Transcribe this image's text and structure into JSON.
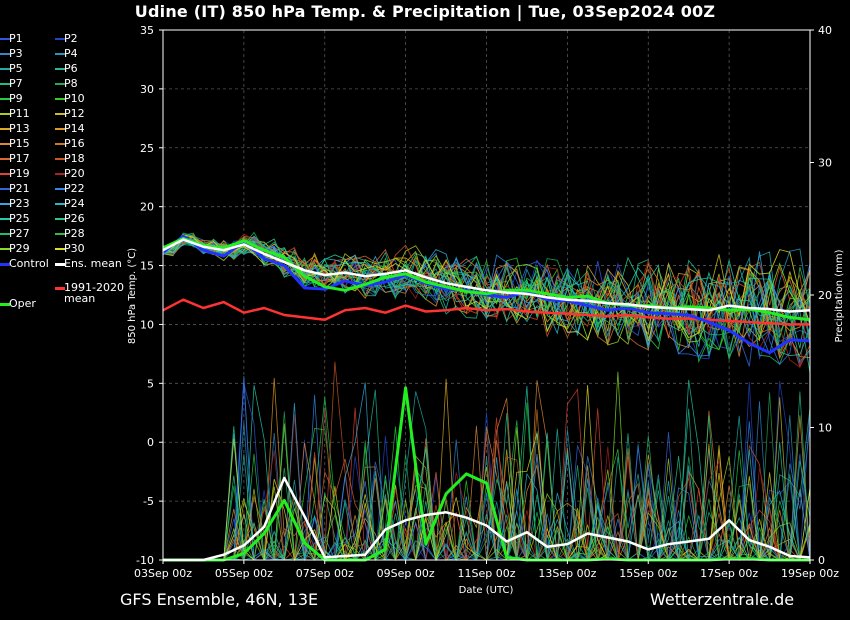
{
  "title": "Udine  (IT)  850 hPa Temp. & Precipitation | Tue, 03Sep2024 00Z",
  "footer_left": "GFS Ensemble, 46N, 13E",
  "footer_right": "Wetterzentrale.de",
  "colors": {
    "background": "#000000",
    "grid": "#555555",
    "oper": "#22ee22",
    "control": "#2233ff",
    "ens_mean": "#ffffff",
    "climate_mean": "#ff3333"
  },
  "legend": {
    "members": [
      {
        "label": "P1",
        "color": "#3355dd"
      },
      {
        "label": "P2",
        "color": "#2244cc"
      },
      {
        "label": "P3",
        "color": "#3388cc"
      },
      {
        "label": "P4",
        "color": "#2299bb"
      },
      {
        "label": "P5",
        "color": "#22aaaa"
      },
      {
        "label": "P6",
        "color": "#22bb99"
      },
      {
        "label": "P7",
        "color": "#22bb88"
      },
      {
        "label": "P8",
        "color": "#22aa55"
      },
      {
        "label": "P9",
        "color": "#22cc44"
      },
      {
        "label": "P10",
        "color": "#33cc22"
      },
      {
        "label": "P11",
        "color": "#aacc22"
      },
      {
        "label": "P12",
        "color": "#ccbb22"
      },
      {
        "label": "P13",
        "color": "#ddaa22"
      },
      {
        "label": "P14",
        "color": "#dd9922"
      },
      {
        "label": "P15",
        "color": "#dd8833"
      },
      {
        "label": "P16",
        "color": "#cc7722"
      },
      {
        "label": "P17",
        "color": "#dd6633"
      },
      {
        "label": "P18",
        "color": "#cc5522"
      },
      {
        "label": "P19",
        "color": "#dd4433"
      },
      {
        "label": "P20",
        "color": "#aa2222"
      },
      {
        "label": "P21",
        "color": "#3366dd"
      },
      {
        "label": "P22",
        "color": "#3388ee"
      },
      {
        "label": "P23",
        "color": "#33aadd"
      },
      {
        "label": "P24",
        "color": "#22bbcc"
      },
      {
        "label": "P25",
        "color": "#22ccaa"
      },
      {
        "label": "P26",
        "color": "#22cc88"
      },
      {
        "label": "P27",
        "color": "#22bb66"
      },
      {
        "label": "P28",
        "color": "#33bb44"
      },
      {
        "label": "P29",
        "color": "#88dd22"
      },
      {
        "label": "P30",
        "color": "#dddd22"
      }
    ],
    "control": "Control",
    "ens_mean": "Ens. mean",
    "oper": "Oper",
    "climate_line1": "1991-2020",
    "climate_line2": "mean"
  },
  "chart_data": {
    "type": "line",
    "xlabel": "Date (UTC)",
    "ylabel": "850 hPa Temp. (°C)",
    "ylabel_right": "Precipitation (mm)",
    "x_ticks": [
      "03Sep 00z",
      "05Sep 00z",
      "07Sep 00z",
      "09Sep 00z",
      "11Sep 00z",
      "13Sep 00z",
      "15Sep 00z",
      "17Sep 00z",
      "19Sep 00z"
    ],
    "x_tick_days": [
      0,
      2,
      4,
      6,
      8,
      10,
      12,
      14,
      16
    ],
    "ylim": [
      -10,
      35
    ],
    "y_ticks": [
      -10,
      -5,
      0,
      5,
      10,
      15,
      20,
      25,
      30,
      35
    ],
    "ylim_right": [
      0,
      40
    ],
    "y_ticks_right": [
      0,
      10,
      20,
      30,
      40
    ],
    "grid": true,
    "series": [
      {
        "name": "Ens. mean",
        "kind": "temperature",
        "days": [
          0,
          0.5,
          1,
          1.5,
          2,
          2.5,
          3,
          3.5,
          4,
          4.5,
          5,
          5.5,
          6,
          6.5,
          7,
          7.5,
          8,
          8.5,
          9,
          9.5,
          10,
          10.5,
          11,
          11.5,
          12,
          12.5,
          13,
          13.5,
          14,
          14.5,
          15,
          15.5,
          16
        ],
        "values": [
          16.3,
          17.2,
          16.6,
          16.3,
          16.8,
          16.0,
          15.3,
          14.6,
          14.2,
          14.4,
          14.1,
          14.3,
          14.6,
          14.0,
          13.5,
          13.2,
          12.9,
          12.7,
          12.6,
          12.3,
          12.1,
          12.0,
          11.8,
          11.7,
          11.5,
          11.4,
          11.3,
          11.2,
          11.6,
          11.4,
          11.3,
          11.1,
          11.2
        ]
      },
      {
        "name": "Control",
        "kind": "temperature",
        "days": [
          0,
          0.5,
          1,
          1.5,
          2,
          2.5,
          3,
          3.5,
          4,
          4.5,
          5,
          5.5,
          6,
          6.5,
          7,
          7.5,
          8,
          8.5,
          9,
          9.5,
          10,
          10.5,
          11,
          11.5,
          12,
          12.5,
          13,
          13.5,
          14,
          14.5,
          15,
          15.5,
          16
        ],
        "values": [
          16.1,
          17.5,
          16.3,
          15.8,
          17.0,
          15.6,
          15.0,
          13.1,
          13.0,
          13.7,
          13.3,
          13.6,
          14.2,
          13.5,
          13.0,
          12.9,
          12.5,
          12.3,
          12.8,
          12.1,
          12.0,
          11.6,
          11.2,
          11.4,
          11.0,
          10.9,
          10.8,
          10.2,
          9.5,
          8.4,
          7.6,
          8.7,
          8.6
        ]
      },
      {
        "name": "Oper",
        "kind": "temperature",
        "days": [
          0,
          0.5,
          1,
          1.5,
          2,
          2.5,
          3,
          3.5,
          4,
          4.5,
          5,
          5.5,
          6,
          6.5,
          7,
          7.5,
          8,
          8.5,
          9,
          9.5,
          10,
          10.5,
          11,
          11.5,
          12,
          12.5,
          13,
          13.5,
          14,
          14.5,
          15,
          15.5,
          16
        ],
        "values": [
          16.5,
          17.3,
          16.7,
          16.5,
          17.1,
          16.3,
          15.7,
          14.1,
          13.2,
          12.9,
          13.4,
          14.0,
          14.3,
          13.6,
          13.2,
          12.8,
          12.6,
          12.9,
          12.9,
          12.6,
          12.3,
          12.4,
          11.8,
          11.6,
          11.6,
          11.4,
          11.5,
          11.4,
          11.2,
          11.3,
          11.0,
          10.6,
          10.4
        ]
      },
      {
        "name": "1991-2020 mean",
        "kind": "temperature",
        "days": [
          0,
          0.5,
          1,
          1.5,
          2,
          2.5,
          3,
          3.5,
          4,
          4.5,
          5,
          5.5,
          6,
          6.5,
          7,
          7.5,
          8,
          8.5,
          9,
          9.5,
          10,
          10.5,
          11,
          11.5,
          12,
          12.5,
          13,
          13.5,
          14,
          14.5,
          15,
          15.5,
          16
        ],
        "values": [
          11.2,
          12.1,
          11.4,
          11.9,
          11.0,
          11.4,
          10.8,
          10.6,
          10.4,
          11.2,
          11.4,
          11.0,
          11.6,
          11.1,
          11.2,
          11.4,
          11.2,
          11.3,
          11.1,
          11.0,
          10.9,
          10.8,
          10.7,
          10.8,
          10.6,
          10.5,
          10.5,
          10.4,
          10.3,
          10.2,
          10.1,
          10.0,
          10.0
        ]
      },
      {
        "name": "Ens. mean precip",
        "kind": "precipitation",
        "days": [
          0,
          0.5,
          1,
          1.5,
          2,
          2.5,
          3,
          3.5,
          4,
          4.5,
          5,
          5.5,
          6,
          6.5,
          7,
          7.5,
          8,
          8.5,
          9,
          9.5,
          10,
          10.5,
          11,
          11.5,
          12,
          12.5,
          13,
          13.5,
          14,
          14.5,
          15,
          15.5,
          16
        ],
        "values": [
          0,
          0,
          0,
          0.4,
          1.1,
          2.5,
          6.2,
          3.3,
          0.2,
          0.3,
          0.4,
          2.3,
          3.0,
          3.4,
          3.6,
          3.2,
          2.6,
          1.4,
          2.1,
          1.0,
          1.2,
          2.0,
          1.7,
          1.4,
          0.8,
          1.2,
          1.4,
          1.6,
          3.0,
          1.5,
          1.0,
          0.3,
          0.2
        ]
      },
      {
        "name": "Oper precip",
        "kind": "precipitation",
        "days": [
          0,
          0.5,
          1,
          1.5,
          2,
          2.5,
          3,
          3.5,
          4,
          4.5,
          5,
          5.5,
          6,
          6.5,
          7,
          7.5,
          8,
          8.5,
          9,
          9.5,
          10,
          10.5,
          11,
          11.5,
          12,
          12.5,
          13,
          13.5,
          14,
          14.5,
          15,
          15.5,
          16
        ],
        "values": [
          0,
          0,
          0,
          0,
          0.5,
          2.0,
          4.5,
          1.3,
          0,
          0,
          0,
          0.8,
          13.0,
          1.2,
          5.0,
          6.5,
          5.8,
          0.2,
          0,
          0,
          0,
          0,
          0.1,
          0,
          0,
          0,
          0,
          0,
          0.1,
          0.1,
          0,
          0,
          0
        ]
      }
    ]
  }
}
